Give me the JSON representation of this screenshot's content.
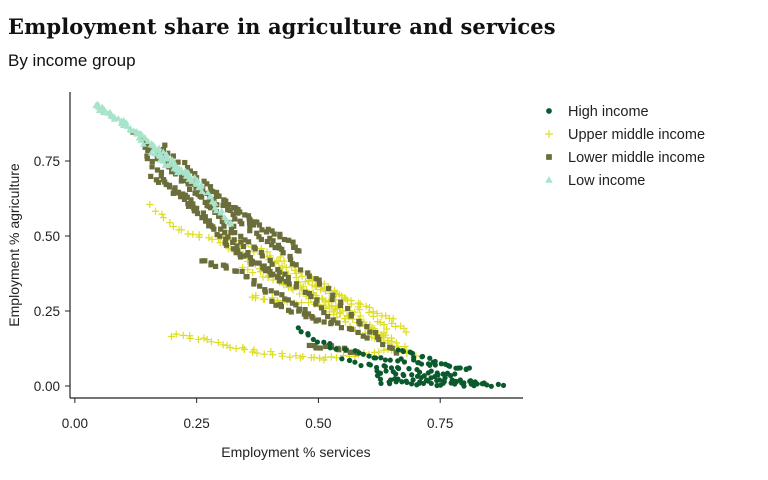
{
  "title": "Employment share in agriculture and services",
  "subtitle": "By income group",
  "chart_data": {
    "type": "scatter",
    "title": "Employment share in agriculture and services",
    "subtitle": "By income group",
    "xlabel": "Employment % services",
    "ylabel": "Employment % agriculture",
    "xlim": [
      -0.01,
      0.92
    ],
    "ylim": [
      -0.04,
      0.98
    ],
    "x_ticks": [
      0.0,
      0.25,
      0.5,
      0.75
    ],
    "x_tick_labels": [
      "0.00",
      "0.25",
      "0.50",
      "0.75"
    ],
    "y_ticks": [
      0.0,
      0.25,
      0.5,
      0.75
    ],
    "y_tick_labels": [
      "0.00",
      "0.25",
      "0.50",
      "0.75"
    ],
    "grid": false,
    "legend_position": "right-top",
    "legend": [
      {
        "label": "High income",
        "color": "#0b5a2e",
        "marker": "circle"
      },
      {
        "label": "Upper middle income",
        "color": "#dede22",
        "marker": "plus"
      },
      {
        "label": "Lower middle income",
        "color": "#6b6e3a",
        "marker": "square"
      },
      {
        "label": "Low income",
        "color": "#a8e3cb",
        "marker": "triangle"
      }
    ],
    "series": [
      {
        "name": "High income",
        "color": "#0b5a2e",
        "marker": "circle",
        "paths": [
          [
            [
              0.46,
              0.19
            ],
            [
              0.5,
              0.15
            ],
            [
              0.55,
              0.12
            ],
            [
              0.6,
              0.1
            ],
            [
              0.65,
              0.09
            ],
            [
              0.7,
              0.08
            ],
            [
              0.74,
              0.07
            ]
          ],
          [
            [
              0.55,
              0.09
            ],
            [
              0.6,
              0.07
            ],
            [
              0.65,
              0.06
            ],
            [
              0.7,
              0.05
            ],
            [
              0.75,
              0.04
            ],
            [
              0.78,
              0.04
            ]
          ],
          [
            [
              0.62,
              0.05
            ],
            [
              0.67,
              0.04
            ],
            [
              0.72,
              0.03
            ],
            [
              0.77,
              0.02
            ],
            [
              0.82,
              0.01
            ]
          ],
          [
            [
              0.63,
              0.01
            ],
            [
              0.68,
              0.01
            ],
            [
              0.73,
              0.005
            ],
            [
              0.78,
              0.005
            ],
            [
              0.83,
              0.003
            ],
            [
              0.88,
              0.002
            ]
          ],
          [
            [
              0.66,
              0.12
            ],
            [
              0.7,
              0.1
            ],
            [
              0.74,
              0.08
            ],
            [
              0.78,
              0.06
            ],
            [
              0.81,
              0.06
            ]
          ],
          [
            [
              0.62,
              0.03
            ],
            [
              0.68,
              0.02
            ],
            [
              0.74,
              0.015
            ],
            [
              0.8,
              0.01
            ],
            [
              0.84,
              0.01
            ]
          ]
        ]
      },
      {
        "name": "Upper middle income",
        "color": "#dede22",
        "marker": "plus",
        "paths": [
          [
            [
              0.16,
              0.6
            ],
            [
              0.2,
              0.53
            ],
            [
              0.25,
              0.5
            ],
            [
              0.3,
              0.48
            ],
            [
              0.35,
              0.43
            ],
            [
              0.4,
              0.37
            ],
            [
              0.45,
              0.32
            ],
            [
              0.5,
              0.27
            ],
            [
              0.55,
              0.22
            ],
            [
              0.6,
              0.17
            ],
            [
              0.65,
              0.13
            ],
            [
              0.7,
              0.1
            ]
          ],
          [
            [
              0.4,
              0.43
            ],
            [
              0.45,
              0.38
            ],
            [
              0.5,
              0.33
            ],
            [
              0.55,
              0.27
            ],
            [
              0.6,
              0.2
            ],
            [
              0.65,
              0.16
            ]
          ],
          [
            [
              0.38,
              0.46
            ],
            [
              0.44,
              0.4
            ],
            [
              0.5,
              0.35
            ],
            [
              0.55,
              0.3
            ],
            [
              0.6,
              0.24
            ],
            [
              0.64,
              0.19
            ]
          ],
          [
            [
              0.35,
              0.4
            ],
            [
              0.4,
              0.36
            ],
            [
              0.45,
              0.33
            ],
            [
              0.5,
              0.3
            ],
            [
              0.55,
              0.25
            ],
            [
              0.6,
              0.2
            ],
            [
              0.64,
              0.15
            ],
            [
              0.68,
              0.12
            ]
          ],
          [
            [
              0.2,
              0.17
            ],
            [
              0.25,
              0.16
            ],
            [
              0.3,
              0.14
            ],
            [
              0.35,
              0.12
            ],
            [
              0.4,
              0.11
            ],
            [
              0.45,
              0.1
            ],
            [
              0.5,
              0.09
            ],
            [
              0.55,
              0.1
            ],
            [
              0.6,
              0.11
            ],
            [
              0.65,
              0.12
            ]
          ],
          [
            [
              0.36,
              0.3
            ],
            [
              0.4,
              0.29
            ],
            [
              0.45,
              0.28
            ],
            [
              0.5,
              0.27
            ],
            [
              0.55,
              0.24
            ],
            [
              0.6,
              0.2
            ],
            [
              0.63,
              0.17
            ]
          ],
          [
            [
              0.47,
              0.35
            ],
            [
              0.52,
              0.32
            ],
            [
              0.57,
              0.28
            ],
            [
              0.61,
              0.25
            ],
            [
              0.65,
              0.22
            ],
            [
              0.68,
              0.18
            ]
          ],
          [
            [
              0.3,
              0.5
            ],
            [
              0.35,
              0.47
            ],
            [
              0.4,
              0.42
            ],
            [
              0.45,
              0.36
            ],
            [
              0.5,
              0.3
            ],
            [
              0.55,
              0.25
            ]
          ]
        ]
      },
      {
        "name": "Lower middle income",
        "color": "#6b6e3a",
        "marker": "square",
        "paths": [
          [
            [
              0.12,
              0.85
            ],
            [
              0.15,
              0.8
            ],
            [
              0.18,
              0.75
            ],
            [
              0.22,
              0.7
            ],
            [
              0.26,
              0.65
            ],
            [
              0.3,
              0.6
            ],
            [
              0.34,
              0.55
            ],
            [
              0.38,
              0.5
            ],
            [
              0.42,
              0.45
            ],
            [
              0.46,
              0.4
            ],
            [
              0.5,
              0.35
            ],
            [
              0.54,
              0.28
            ],
            [
              0.58,
              0.22
            ],
            [
              0.62,
              0.16
            ],
            [
              0.66,
              0.11
            ]
          ],
          [
            [
              0.14,
              0.82
            ],
            [
              0.18,
              0.76
            ],
            [
              0.22,
              0.7
            ],
            [
              0.26,
              0.63
            ],
            [
              0.3,
              0.57
            ],
            [
              0.34,
              0.5
            ],
            [
              0.38,
              0.44
            ],
            [
              0.42,
              0.38
            ],
            [
              0.46,
              0.33
            ],
            [
              0.5,
              0.27
            ],
            [
              0.54,
              0.21
            ]
          ],
          [
            [
              0.2,
              0.72
            ],
            [
              0.24,
              0.66
            ],
            [
              0.28,
              0.6
            ],
            [
              0.32,
              0.52
            ],
            [
              0.35,
              0.45
            ],
            [
              0.38,
              0.4
            ],
            [
              0.42,
              0.35
            ]
          ],
          [
            [
              0.16,
              0.7
            ],
            [
              0.2,
              0.65
            ],
            [
              0.24,
              0.62
            ],
            [
              0.28,
              0.55
            ],
            [
              0.32,
              0.48
            ],
            [
              0.36,
              0.42
            ],
            [
              0.4,
              0.38
            ],
            [
              0.44,
              0.34
            ]
          ],
          [
            [
              0.28,
              0.65
            ],
            [
              0.32,
              0.6
            ],
            [
              0.36,
              0.56
            ],
            [
              0.4,
              0.52
            ],
            [
              0.44,
              0.48
            ],
            [
              0.46,
              0.45
            ]
          ],
          [
            [
              0.26,
              0.42
            ],
            [
              0.3,
              0.4
            ],
            [
              0.34,
              0.38
            ],
            [
              0.38,
              0.33
            ],
            [
              0.42,
              0.3
            ],
            [
              0.46,
              0.26
            ],
            [
              0.5,
              0.22
            ]
          ],
          [
            [
              0.4,
              0.28
            ],
            [
              0.45,
              0.25
            ],
            [
              0.5,
              0.22
            ],
            [
              0.55,
              0.2
            ],
            [
              0.6,
              0.16
            ]
          ],
          [
            [
              0.18,
              0.8
            ],
            [
              0.22,
              0.74
            ],
            [
              0.26,
              0.68
            ],
            [
              0.3,
              0.63
            ],
            [
              0.34,
              0.58
            ],
            [
              0.38,
              0.52
            ],
            [
              0.42,
              0.46
            ]
          ],
          [
            [
              0.14,
              0.8
            ],
            [
              0.16,
              0.73
            ],
            [
              0.19,
              0.68
            ],
            [
              0.22,
              0.63
            ],
            [
              0.25,
              0.58
            ],
            [
              0.28,
              0.53
            ],
            [
              0.31,
              0.48
            ],
            [
              0.34,
              0.43
            ]
          ],
          [
            [
              0.48,
              0.13
            ],
            [
              0.52,
              0.13
            ],
            [
              0.55,
              0.12
            ],
            [
              0.58,
              0.11
            ]
          ]
        ]
      },
      {
        "name": "Low income",
        "color": "#a8e3cb",
        "marker": "triangle",
        "paths": [
          [
            [
              0.04,
              0.94
            ],
            [
              0.06,
              0.92
            ],
            [
              0.08,
              0.9
            ],
            [
              0.1,
              0.88
            ],
            [
              0.12,
              0.85
            ],
            [
              0.14,
              0.83
            ],
            [
              0.16,
              0.8
            ],
            [
              0.18,
              0.77
            ],
            [
              0.2,
              0.74
            ],
            [
              0.22,
              0.72
            ],
            [
              0.24,
              0.69
            ],
            [
              0.26,
              0.66
            ],
            [
              0.28,
              0.62
            ],
            [
              0.3,
              0.58
            ],
            [
              0.32,
              0.54
            ]
          ],
          [
            [
              0.05,
              0.93
            ],
            [
              0.08,
              0.89
            ],
            [
              0.11,
              0.86
            ],
            [
              0.14,
              0.82
            ],
            [
              0.17,
              0.78
            ],
            [
              0.2,
              0.75
            ],
            [
              0.23,
              0.71
            ],
            [
              0.26,
              0.67
            ]
          ],
          [
            [
              0.16,
              0.78
            ],
            [
              0.19,
              0.74
            ],
            [
              0.22,
              0.71
            ],
            [
              0.25,
              0.68
            ]
          ]
        ]
      }
    ]
  }
}
